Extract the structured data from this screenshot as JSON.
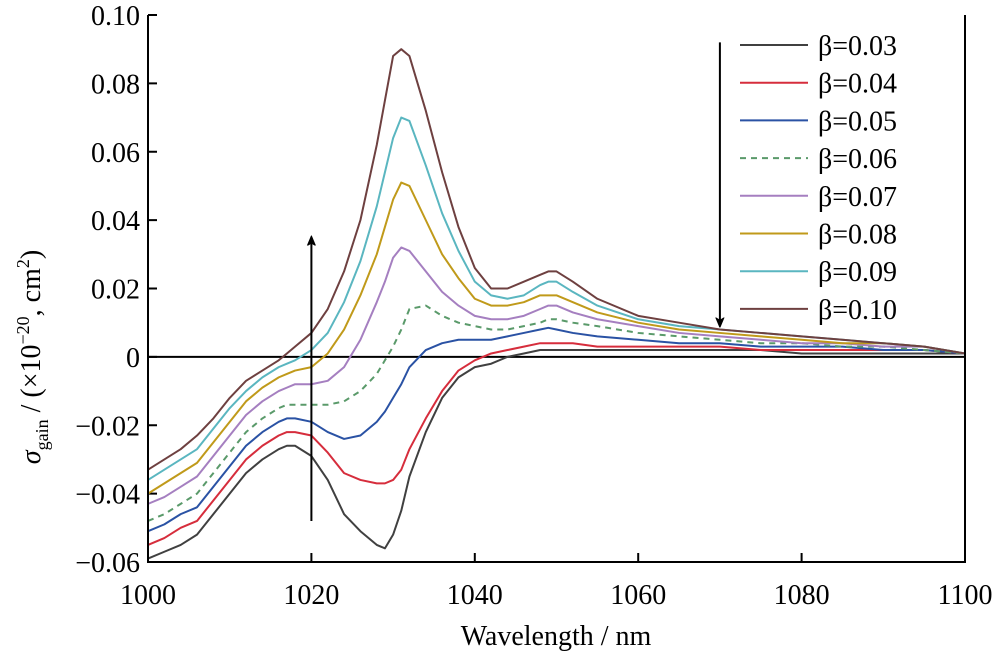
{
  "chart_data": {
    "type": "line",
    "xlabel": "Wavelength / nm",
    "ylabel": {
      "symbol": "σ",
      "subscript": "gain",
      "text1": " / (×10",
      "sup1": "−20",
      "text2": ", cm",
      "sup2": "2",
      "text3": ")"
    },
    "x": [
      1000,
      1002,
      1004,
      1006,
      1008,
      1010,
      1012,
      1014,
      1016,
      1017,
      1018,
      1020,
      1022,
      1024,
      1026,
      1028,
      1029,
      1030,
      1031,
      1032,
      1034,
      1036,
      1038,
      1040,
      1042,
      1044,
      1046,
      1048,
      1049,
      1050,
      1052,
      1055,
      1060,
      1065,
      1070,
      1075,
      1080,
      1085,
      1090,
      1095,
      1100
    ],
    "series": [
      {
        "name": "β=0.03",
        "color": "#404040",
        "dash": false,
        "values": [
          -0.059,
          -0.057,
          -0.055,
          -0.052,
          -0.046,
          -0.04,
          -0.034,
          -0.03,
          -0.027,
          -0.026,
          -0.026,
          -0.029,
          -0.036,
          -0.046,
          -0.051,
          -0.055,
          -0.056,
          -0.052,
          -0.045,
          -0.035,
          -0.022,
          -0.012,
          -0.006,
          -0.003,
          -0.002,
          0,
          0.001,
          0.002,
          0.002,
          0.002,
          0.002,
          0.002,
          0.002,
          0.002,
          0.002,
          0.002,
          0.001,
          0.001,
          0.001,
          0.001,
          0.001
        ]
      },
      {
        "name": "β=0.04",
        "color": "#d62d3c",
        "dash": false,
        "values": [
          -0.055,
          -0.053,
          -0.05,
          -0.048,
          -0.042,
          -0.036,
          -0.03,
          -0.026,
          -0.023,
          -0.022,
          -0.022,
          -0.023,
          -0.028,
          -0.034,
          -0.036,
          -0.037,
          -0.037,
          -0.036,
          -0.033,
          -0.027,
          -0.018,
          -0.01,
          -0.004,
          -0.001,
          0.001,
          0.002,
          0.003,
          0.004,
          0.004,
          0.004,
          0.004,
          0.003,
          0.003,
          0.003,
          0.003,
          0.002,
          0.002,
          0.002,
          0.002,
          0.002,
          0.001
        ]
      },
      {
        "name": "β=0.05",
        "color": "#2a52a4",
        "dash": false,
        "values": [
          -0.051,
          -0.049,
          -0.046,
          -0.044,
          -0.038,
          -0.032,
          -0.026,
          -0.022,
          -0.019,
          -0.018,
          -0.018,
          -0.019,
          -0.022,
          -0.024,
          -0.023,
          -0.019,
          -0.016,
          -0.012,
          -0.008,
          -0.003,
          0.002,
          0.004,
          0.005,
          0.005,
          0.005,
          0.006,
          0.007,
          0.008,
          0.0085,
          0.008,
          0.007,
          0.006,
          0.005,
          0.004,
          0.004,
          0.003,
          0.003,
          0.003,
          0.002,
          0.002,
          0.001
        ]
      },
      {
        "name": "β=0.06",
        "color": "#5a9a6a",
        "dash": true,
        "values": [
          -0.048,
          -0.046,
          -0.043,
          -0.04,
          -0.034,
          -0.028,
          -0.022,
          -0.018,
          -0.015,
          -0.014,
          -0.014,
          -0.014,
          -0.014,
          -0.013,
          -0.01,
          -0.005,
          -0.001,
          0.003,
          0.008,
          0.014,
          0.015,
          0.012,
          0.01,
          0.009,
          0.008,
          0.008,
          0.009,
          0.01,
          0.011,
          0.011,
          0.01,
          0.009,
          0.007,
          0.006,
          0.005,
          0.004,
          0.004,
          0.003,
          0.003,
          0.002,
          0.001
        ]
      },
      {
        "name": "β=0.07",
        "color": "#a57fc0",
        "dash": false,
        "values": [
          -0.043,
          -0.041,
          -0.038,
          -0.035,
          -0.029,
          -0.023,
          -0.017,
          -0.013,
          -0.01,
          -0.009,
          -0.008,
          -0.008,
          -0.007,
          -0.003,
          0.005,
          0.016,
          0.022,
          0.029,
          0.032,
          0.031,
          0.025,
          0.019,
          0.015,
          0.012,
          0.011,
          0.011,
          0.012,
          0.014,
          0.015,
          0.015,
          0.013,
          0.011,
          0.009,
          0.007,
          0.006,
          0.005,
          0.004,
          0.004,
          0.003,
          0.003,
          0.001
        ]
      },
      {
        "name": "β=0.08",
        "color": "#c09a1a",
        "dash": false,
        "values": [
          -0.04,
          -0.037,
          -0.034,
          -0.031,
          -0.025,
          -0.019,
          -0.013,
          -0.009,
          -0.006,
          -0.005,
          -0.004,
          -0.003,
          0.001,
          0.008,
          0.018,
          0.03,
          0.038,
          0.046,
          0.051,
          0.05,
          0.04,
          0.03,
          0.023,
          0.017,
          0.015,
          0.015,
          0.016,
          0.018,
          0.018,
          0.018,
          0.016,
          0.013,
          0.01,
          0.008,
          0.007,
          0.006,
          0.005,
          0.004,
          0.004,
          0.003,
          0.001
        ]
      },
      {
        "name": "β=0.09",
        "color": "#5ab6c0",
        "dash": false,
        "values": [
          -0.036,
          -0.033,
          -0.03,
          -0.027,
          -0.021,
          -0.015,
          -0.01,
          -0.006,
          -0.003,
          -0.002,
          -0.001,
          0.002,
          0.007,
          0.016,
          0.028,
          0.044,
          0.054,
          0.064,
          0.07,
          0.069,
          0.056,
          0.042,
          0.031,
          0.022,
          0.018,
          0.017,
          0.018,
          0.021,
          0.022,
          0.022,
          0.019,
          0.015,
          0.011,
          0.009,
          0.008,
          0.007,
          0.006,
          0.005,
          0.004,
          0.003,
          0.001
        ]
      },
      {
        "name": "β=0.10",
        "color": "#6e4040",
        "dash": false,
        "values": [
          -0.033,
          -0.03,
          -0.027,
          -0.023,
          -0.018,
          -0.012,
          -0.007,
          -0.004,
          -0.001,
          0.001,
          0.003,
          0.007,
          0.014,
          0.025,
          0.04,
          0.062,
          0.075,
          0.088,
          0.09,
          0.088,
          0.072,
          0.054,
          0.038,
          0.026,
          0.02,
          0.02,
          0.022,
          0.024,
          0.025,
          0.025,
          0.022,
          0.017,
          0.012,
          0.01,
          0.008,
          0.007,
          0.006,
          0.005,
          0.004,
          0.003,
          0.001
        ]
      }
    ],
    "xlim": [
      1000,
      1100
    ],
    "xticks": [
      1000,
      1020,
      1040,
      1060,
      1080,
      1100
    ],
    "ylim": [
      -0.06,
      0.1
    ],
    "yticks": [
      {
        "value": -0.06,
        "label": "−0.06"
      },
      {
        "value": -0.04,
        "label": "−0.04"
      },
      {
        "value": -0.02,
        "label": "−0.02"
      },
      0,
      0.02,
      0.04,
      0.06,
      0.08,
      {
        "value": 0.1,
        "label": "0.10"
      }
    ],
    "zero_line": true,
    "legend": "upper right",
    "arrows": [
      {
        "x": 1020,
        "y": [
          -0.048,
          0.034
        ]
      },
      {
        "x": 1070,
        "y": [
          0.092,
          0.01
        ]
      }
    ]
  }
}
